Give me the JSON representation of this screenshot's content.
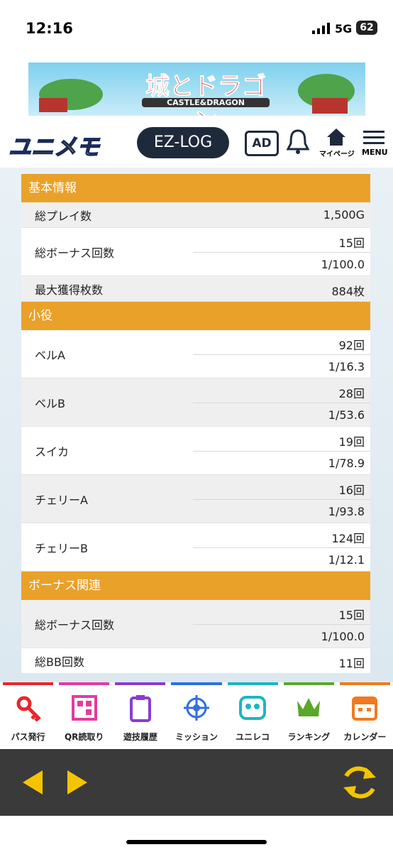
{
  "status_bar": {
    "time": "12:16",
    "network": "5G",
    "battery": "62"
  },
  "banner": {
    "title": "城とドラゴン",
    "subtitle": "CASTLE&DRAGON"
  },
  "header": {
    "logo": "ユニメモ",
    "ez_log": "EZ-LOG",
    "ad": "AD",
    "mypage": "マイページ",
    "menu": "MENU"
  },
  "sections": [
    {
      "title": "基本情報",
      "rows": [
        {
          "label": "総プレイ数",
          "values": [
            "1,500G"
          ]
        },
        {
          "label": "総ボーナス回数",
          "values": [
            "15回",
            "1/100.0"
          ]
        },
        {
          "label": "最大獲得枚数",
          "values": [
            "884枚"
          ]
        }
      ]
    },
    {
      "title": "小役",
      "rows": [
        {
          "label": "ベルA",
          "values": [
            "92回",
            "1/16.3"
          ]
        },
        {
          "label": "ベルB",
          "values": [
            "28回",
            "1/53.6"
          ]
        },
        {
          "label": "スイカ",
          "values": [
            "19回",
            "1/78.9"
          ]
        },
        {
          "label": "チェリーA",
          "values": [
            "16回",
            "1/93.8"
          ]
        },
        {
          "label": "チェリーB",
          "values": [
            "124回",
            "1/12.1"
          ]
        }
      ]
    },
    {
      "title": "ボーナス関連",
      "rows": [
        {
          "label": "総ボーナス回数",
          "values": [
            "15回",
            "1/100.0"
          ]
        },
        {
          "label": "総BB回数",
          "values": [
            "11回"
          ]
        }
      ]
    }
  ],
  "tabs": [
    {
      "label": "パス発行",
      "color": "#e8262a"
    },
    {
      "label": "QR読取り",
      "color": "#e23ca0"
    },
    {
      "label": "遊技履歴",
      "color": "#8a3ccf"
    },
    {
      "label": "ミッション",
      "color": "#2f6fe0"
    },
    {
      "label": "ユニレコ",
      "color": "#1eb5c0"
    },
    {
      "label": "ランキング",
      "color": "#5aa82a"
    },
    {
      "label": "カレンダー",
      "color": "#f07a20"
    }
  ]
}
